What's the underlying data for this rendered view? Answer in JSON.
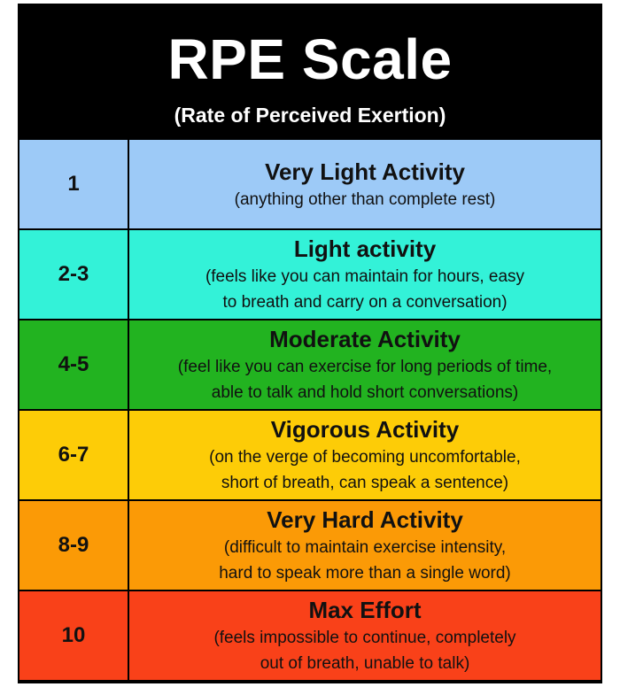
{
  "header": {
    "title": "RPE Scale",
    "subtitle": "(Rate of Perceived Exertion)"
  },
  "rows": [
    {
      "level": "1",
      "name": "Very Light Activity",
      "detail_lines": [
        "(anything other than complete rest)"
      ],
      "color": "#9dcaf7"
    },
    {
      "level": "2-3",
      "name": "Light activity",
      "detail_lines": [
        "(feels like you can maintain for hours, easy",
        "to breath and carry on a conversation)"
      ],
      "color": "#33f2d8"
    },
    {
      "level": "4-5",
      "name": "Moderate Activity",
      "detail_lines": [
        "(feel like you can exercise for long periods of time,",
        "able to talk and hold short conversations)"
      ],
      "color": "#22b320"
    },
    {
      "level": "6-7",
      "name": "Vigorous Activity",
      "detail_lines": [
        "(on the verge of becoming uncomfortable,",
        "short of breath, can speak a sentence)"
      ],
      "color": "#fdcc07"
    },
    {
      "level": "8-9",
      "name": "Very Hard Activity",
      "detail_lines": [
        "(difficult to maintain exercise intensity,",
        "hard to speak more than a single word)"
      ],
      "color": "#fb9a06"
    },
    {
      "level": "10",
      "name": "Max Effort",
      "detail_lines": [
        "(feels impossible to continue, completely",
        "out of breath, unable to talk)"
      ],
      "color": "#f94119"
    }
  ]
}
